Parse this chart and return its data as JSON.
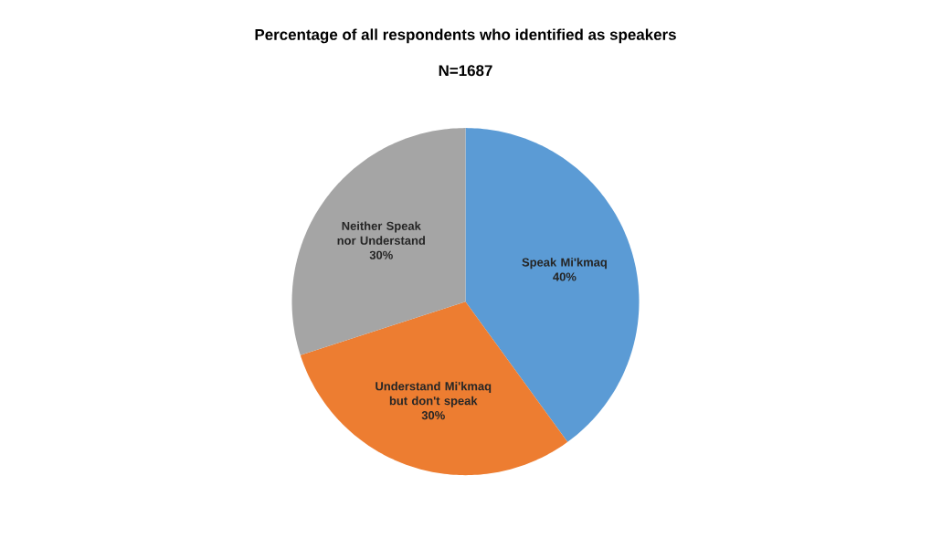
{
  "chart_data": {
    "type": "pie",
    "title": "Percentage of all respondents who identified as speakers",
    "subtitle": "N=1687",
    "categories": [
      "Speak Mi'kmaq",
      "Understand Mi'kmaq but don't speak",
      "Neither Speak nor Understand"
    ],
    "values": [
      40,
      30,
      30
    ],
    "colors": [
      "#5b9bd5",
      "#ed7d31",
      "#a5a5a5"
    ],
    "value_labels": [
      "40%",
      "30%",
      "30%"
    ]
  }
}
